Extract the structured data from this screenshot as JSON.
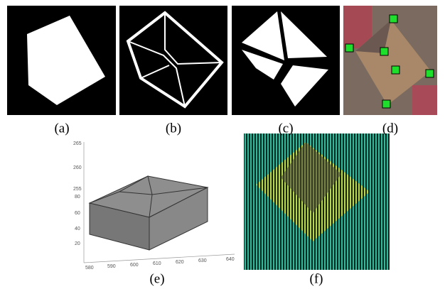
{
  "panels": [
    {
      "label": "(a)"
    },
    {
      "label": "(b)"
    },
    {
      "label": "(c)"
    },
    {
      "label": "(d)"
    },
    {
      "label": "(e)"
    },
    {
      "label": "(f)"
    }
  ],
  "plot_e": {
    "z_ticks": [
      265,
      260,
      255
    ],
    "y_ticks": [
      80,
      60,
      40,
      20
    ],
    "x_ticks": [
      580,
      590,
      600,
      610,
      620,
      630,
      640
    ]
  }
}
